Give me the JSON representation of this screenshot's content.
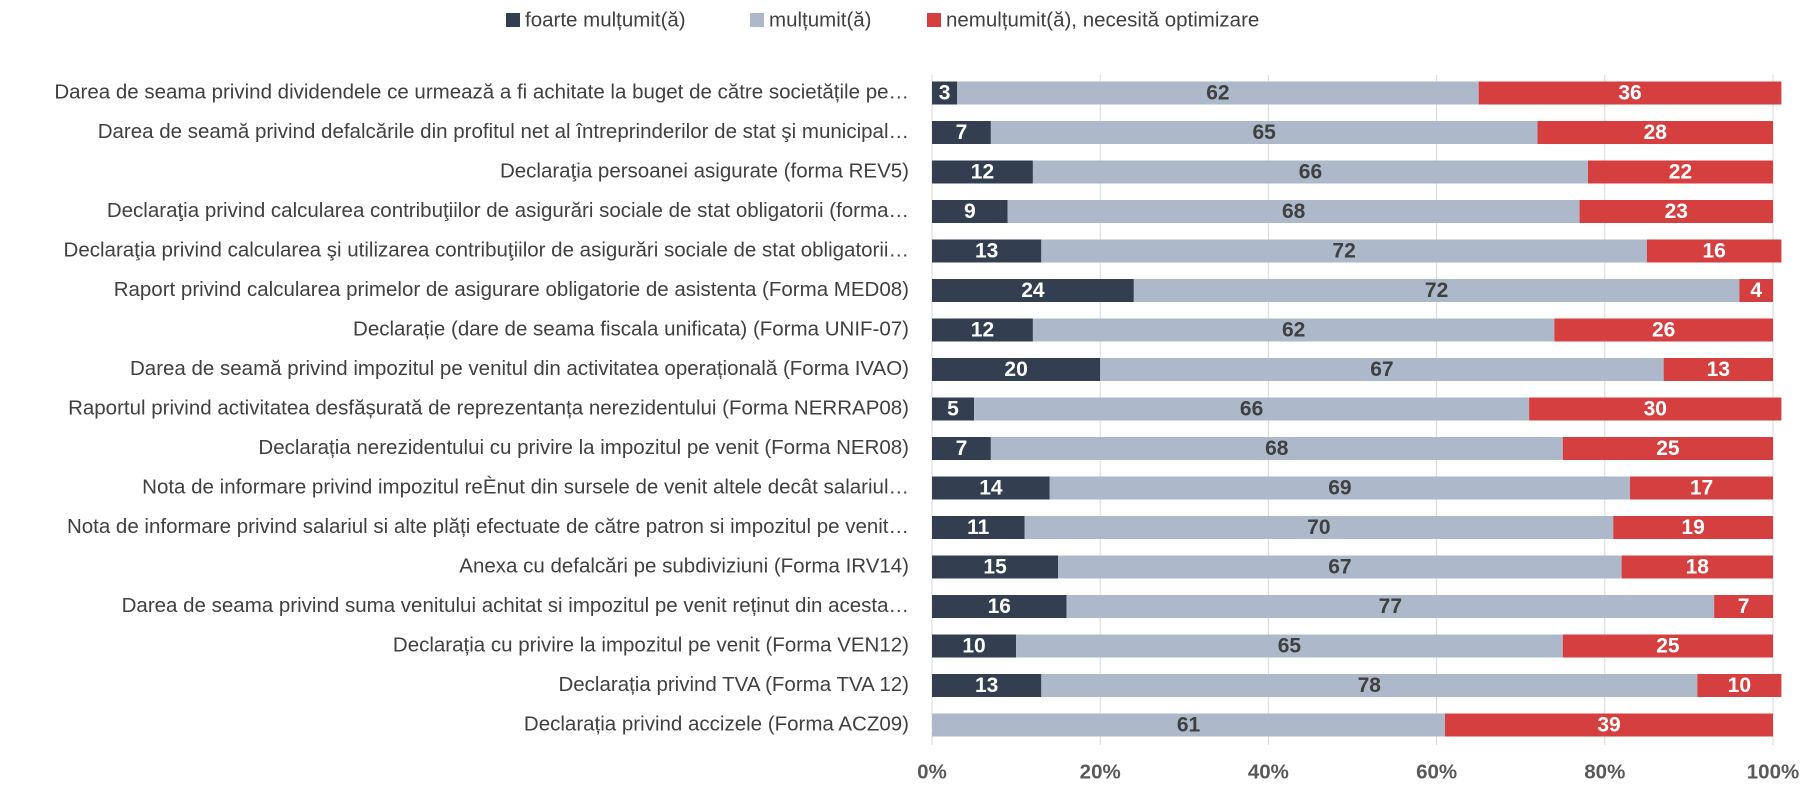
{
  "chart_data": {
    "type": "stacked_barh",
    "categories": [
      "Darea de seama privind dividendele ce urmează a fi achitate la buget de către societățile pe…",
      "Darea de seamă privind defalcările din profitul net al întreprinderilor de stat şi municipal…",
      "Declaraţia persoanei asigurate (forma REV5)",
      "Declaraţia privind calcularea contribuţiilor de asigurări sociale de stat obligatorii (forma…",
      "Declaraţia privind calcularea şi utilizarea contribuţiilor de asigurări sociale de stat obligatorii…",
      "Raport privind calcularea primelor de asigurare obligatorie de asistenta (Forma MED08)",
      "Declarație (dare de seama fiscala unificata) (Forma UNIF-07)",
      "Darea de seamă privind impozitul pe venitul din activitatea operațională (Forma IVAO)",
      "Raportul privind activitatea desfășurată de reprezentanța nerezidentului (Forma NERRAP08)",
      "Declarația nerezidentului cu privire la impozitul pe venit (Forma NER08)",
      "Nota de informare privind impozitul reÈnut din sursele de venit altele decât salariul…",
      "Nota de informare privind salariul si alte plăți efectuate de către patron si impozitul pe venit…",
      "Anexa cu defalcări pe subdiviziuni (Forma IRV14)",
      "Darea de seama privind suma venitului achitat si impozitul pe venit reținut din acesta…",
      "Declarația cu privire la impozitul pe venit (Forma VEN12)",
      "Declarația privind TVA (Forma TVA 12)",
      "Declarația privind accizele (Forma ACZ09)"
    ],
    "series": [
      {
        "name": "foarte mulțumit(ă)",
        "color": "#333f50",
        "values": [
          3,
          7,
          12,
          9,
          13,
          24,
          12,
          20,
          5,
          7,
          14,
          11,
          15,
          16,
          10,
          13,
          0
        ]
      },
      {
        "name": "mulțumit(ă)",
        "color": "#adb9ca",
        "values": [
          62,
          65,
          66,
          68,
          72,
          72,
          62,
          67,
          66,
          68,
          69,
          70,
          67,
          77,
          65,
          78,
          61
        ]
      },
      {
        "name": "nemulțumit(ă), necesită optimizare",
        "color": "#d63f3f",
        "values": [
          36,
          28,
          22,
          23,
          16,
          4,
          26,
          13,
          30,
          25,
          17,
          19,
          18,
          7,
          25,
          10,
          39
        ]
      }
    ],
    "xlim": [
      0,
      100
    ],
    "xticks": [
      {
        "value": 0,
        "label": "0%"
      },
      {
        "value": 20,
        "label": "20%"
      },
      {
        "value": 40,
        "label": "40%"
      },
      {
        "value": 60,
        "label": "60%"
      },
      {
        "value": 80,
        "label": "80%"
      },
      {
        "value": 100,
        "label": "100%"
      }
    ],
    "grid": true,
    "legend": "top"
  }
}
